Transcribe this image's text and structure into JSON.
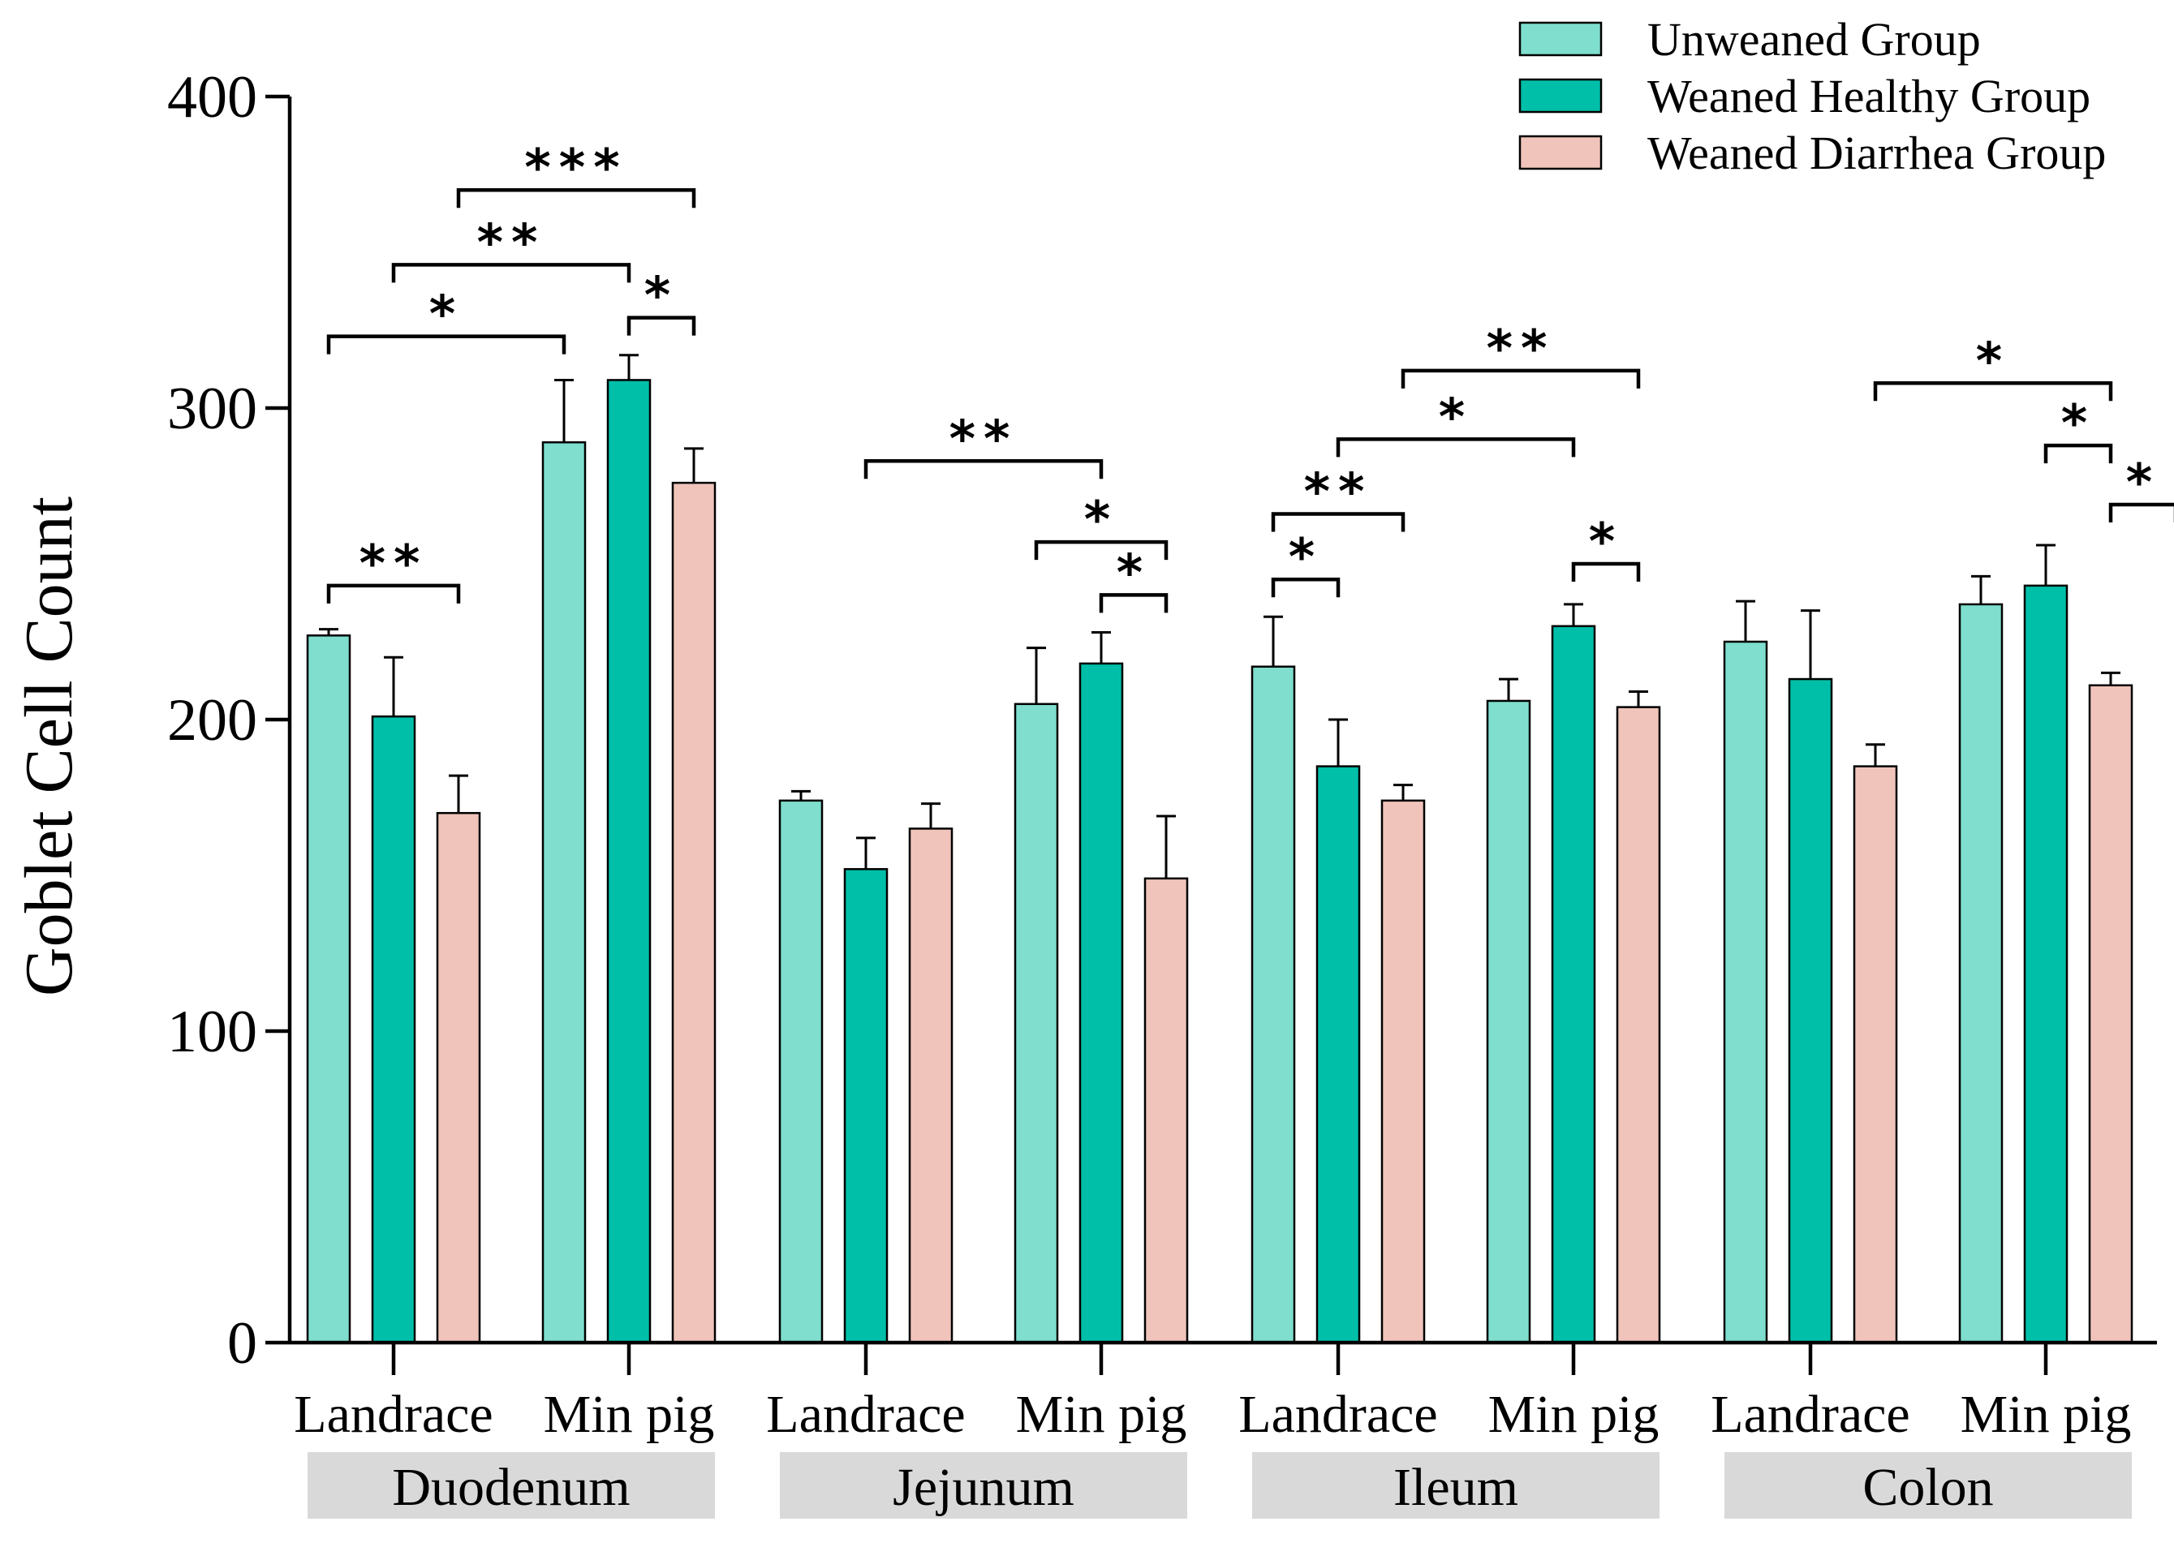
{
  "chart_data": {
    "type": "bar",
    "title": "",
    "xlabel": "",
    "ylabel": "Goblet Cell Count",
    "ylim": [
      0,
      400
    ],
    "yticks": [
      0,
      100,
      200,
      300,
      400
    ],
    "grid": false,
    "legend_position": "top-right",
    "colors": {
      "Unweaned Group": "#7fdecd",
      "Weaned Healthy Group": "#00bfa8",
      "Weaned Diarrhea Group": "#f0c4bb",
      "region_box": "#d9d9d9"
    },
    "series_names": [
      "Unweaned Group",
      "Weaned Healthy Group",
      "Weaned Diarrhea Group"
    ],
    "regions": [
      {
        "name": "Duodenum",
        "breeds": [
          {
            "label": "Landrace",
            "values": [
              227,
              201,
              170
            ],
            "errors": [
              2,
              19,
              12
            ]
          },
          {
            "label": "Min pig",
            "values": [
              289,
              309,
              276
            ],
            "errors": [
              20,
              8,
              11
            ]
          }
        ]
      },
      {
        "name": "Jejunum",
        "breeds": [
          {
            "label": "Landrace",
            "values": [
              174,
              152,
              165
            ],
            "errors": [
              3,
              10,
              8
            ]
          },
          {
            "label": "Min pig",
            "values": [
              205,
              218,
              149
            ],
            "errors": [
              18,
              10,
              20
            ]
          }
        ]
      },
      {
        "name": "Ileum",
        "breeds": [
          {
            "label": "Landrace",
            "values": [
              217,
              185,
              174
            ],
            "errors": [
              16,
              15,
              5
            ]
          },
          {
            "label": "Min pig",
            "values": [
              206,
              230,
              204
            ],
            "errors": [
              7,
              7,
              5
            ]
          }
        ]
      },
      {
        "name": "Colon",
        "breeds": [
          {
            "label": "Landrace",
            "values": [
              225,
              213,
              185
            ],
            "errors": [
              13,
              22,
              7
            ]
          },
          {
            "label": "Min pig",
            "values": [
              237,
              243,
              211
            ],
            "errors": [
              9,
              13,
              4
            ]
          }
        ]
      }
    ],
    "significance": [
      {
        "from": [
          0,
          0,
          0
        ],
        "to": [
          0,
          0,
          2
        ],
        "level": 243,
        "label": "**"
      },
      {
        "from": [
          0,
          0,
          0
        ],
        "to": [
          0,
          1,
          0
        ],
        "level": 323,
        "label": "*"
      },
      {
        "from": [
          0,
          0,
          1
        ],
        "to": [
          0,
          1,
          1
        ],
        "level": 346,
        "label": "**"
      },
      {
        "from": [
          0,
          1,
          1
        ],
        "to": [
          0,
          1,
          2
        ],
        "level": 329,
        "label": "*"
      },
      {
        "from": [
          0,
          0,
          2
        ],
        "to": [
          0,
          1,
          2
        ],
        "level": 370,
        "label": "***"
      },
      {
        "from": [
          1,
          0,
          1
        ],
        "to": [
          1,
          1,
          1
        ],
        "level": 283,
        "label": "**"
      },
      {
        "from": [
          1,
          1,
          0
        ],
        "to": [
          1,
          1,
          2
        ],
        "level": 257,
        "label": "*"
      },
      {
        "from": [
          1,
          1,
          1
        ],
        "to": [
          1,
          1,
          2
        ],
        "level": 240,
        "label": "*"
      },
      {
        "from": [
          2,
          0,
          0
        ],
        "to": [
          2,
          0,
          1
        ],
        "level": 245,
        "label": "*"
      },
      {
        "from": [
          2,
          0,
          0
        ],
        "to": [
          2,
          0,
          2
        ],
        "level": 266,
        "label": "**"
      },
      {
        "from": [
          2,
          0,
          1
        ],
        "to": [
          2,
          1,
          1
        ],
        "level": 290,
        "label": "*"
      },
      {
        "from": [
          2,
          0,
          2
        ],
        "to": [
          2,
          1,
          2
        ],
        "level": 312,
        "label": "**"
      },
      {
        "from": [
          2,
          1,
          1
        ],
        "to": [
          2,
          1,
          2
        ],
        "level": 250,
        "label": "*"
      },
      {
        "from": [
          3,
          0,
          2
        ],
        "to": [
          3,
          1,
          2
        ],
        "level": 308,
        "label": "*"
      },
      {
        "from": [
          3,
          1,
          1
        ],
        "to": [
          3,
          1,
          2
        ],
        "level": 288,
        "label": "*"
      },
      {
        "from": [
          3,
          1,
          2
        ],
        "to": [
          3,
          1,
          3
        ],
        "level": 269,
        "label": "*"
      }
    ]
  }
}
